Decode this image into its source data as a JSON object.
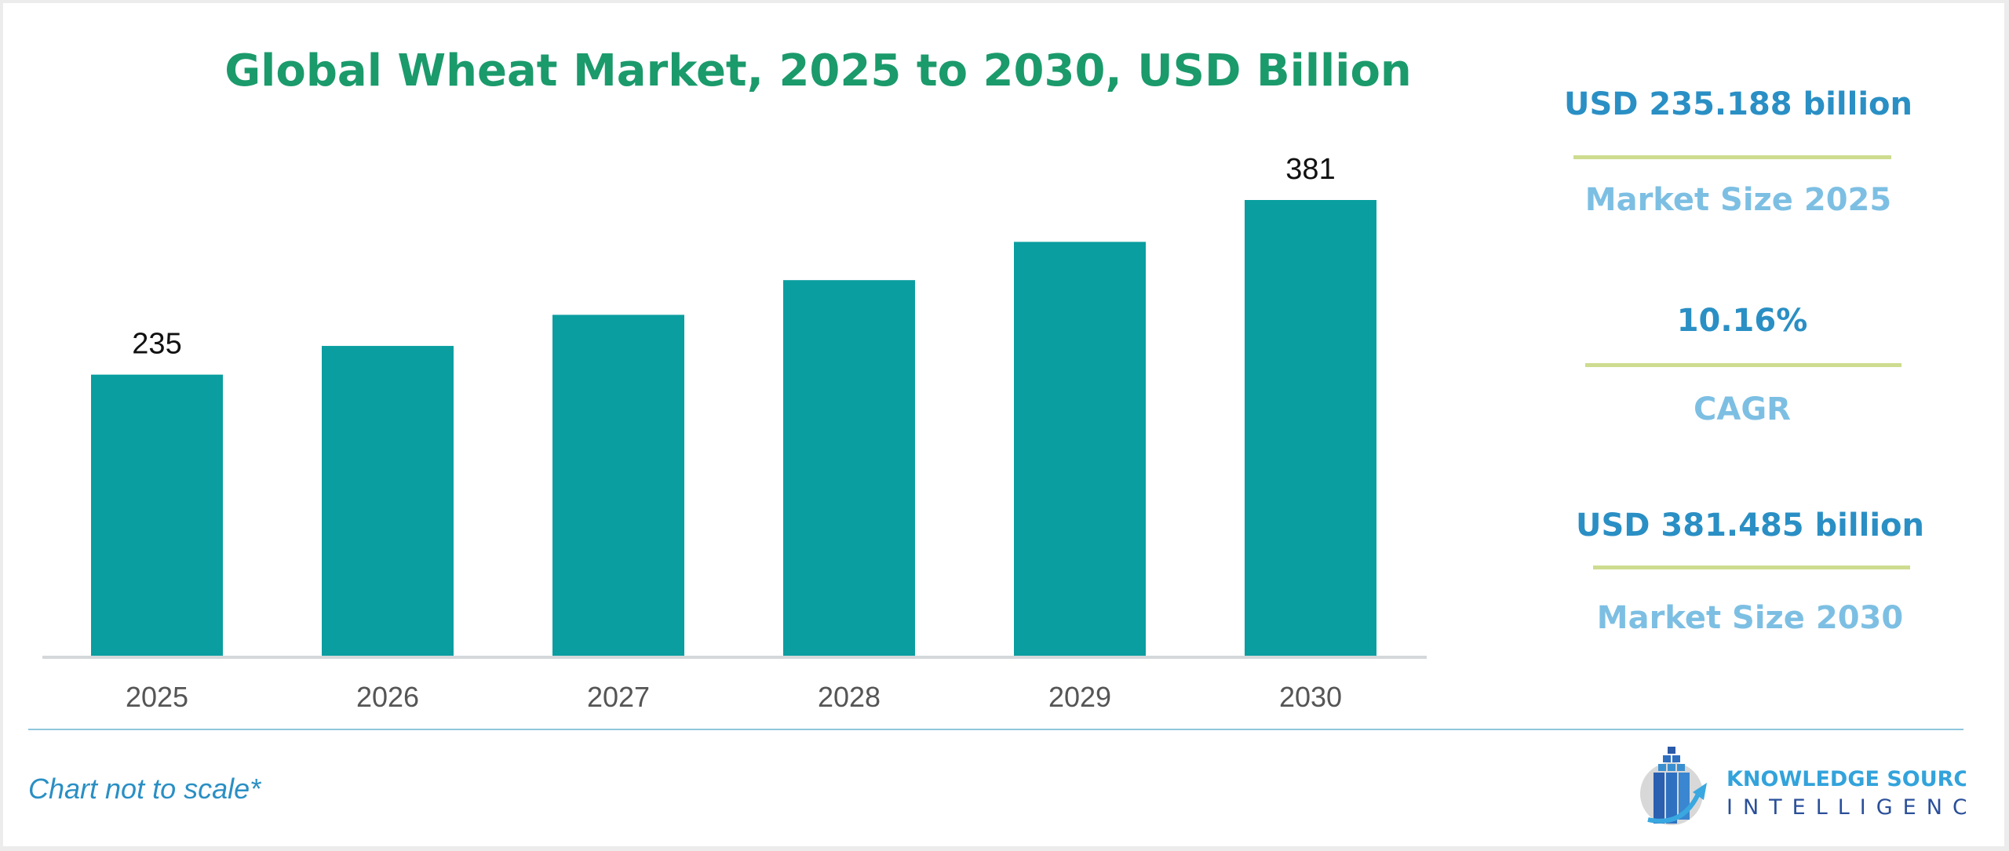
{
  "chart_data": {
    "type": "bar",
    "title": "Global Wheat Market, 2025 to 2030, USD Billion",
    "categories": [
      "2025",
      "2026",
      "2027",
      "2028",
      "2029",
      "2030"
    ],
    "values": [
      235,
      259,
      285,
      314,
      346,
      381
    ],
    "data_labels": {
      "2025": "235",
      "2030": "381"
    },
    "xlabel": "",
    "ylabel": "",
    "ylim": [
      0,
      381
    ],
    "grid": false,
    "colors": {
      "bar": "#0a9ea0",
      "axis": "#d5d8da"
    }
  },
  "stats": [
    {
      "value": "USD 235.188 billion",
      "label": "Market Size 2025"
    },
    {
      "value": "10.16%",
      "label": "CAGR"
    },
    {
      "value": "USD 381.485 billion",
      "label": "Market Size 2030"
    }
  ],
  "footnote": "Chart not to scale*",
  "logo": {
    "line1": "KNOWLEDGE SOURCING",
    "line2": "INTELLIGENCE"
  }
}
